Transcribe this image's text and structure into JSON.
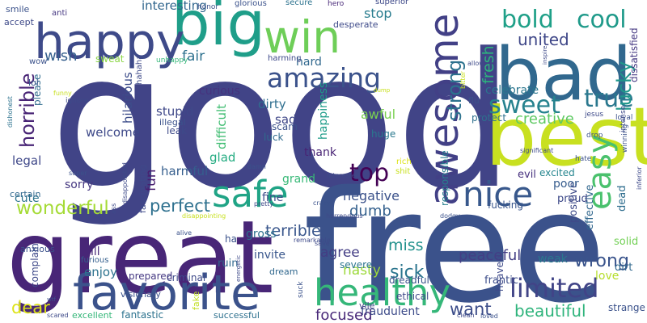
{
  "words": [
    {
      "text": "good",
      "color": "#414487"
    },
    {
      "text": "free",
      "color": "#3b528b"
    },
    {
      "text": "great",
      "color": "#482677"
    },
    {
      "text": "bad",
      "color": "#31688e"
    },
    {
      "text": "best",
      "color": "#c8e020"
    },
    {
      "text": "big",
      "color": "#1f9e89"
    },
    {
      "text": "happy",
      "color": "#3e4a89"
    },
    {
      "text": "win",
      "color": "#6ece58"
    },
    {
      "text": "awesome",
      "color": "#424086"
    },
    {
      "text": "favorite",
      "color": "#3b528b"
    },
    {
      "text": "healthy",
      "color": "#35b779"
    },
    {
      "text": "safe",
      "color": "#20a486"
    },
    {
      "text": "amazing",
      "color": "#3b528b"
    },
    {
      "text": "bold",
      "color": "#1fa088"
    },
    {
      "text": "cool",
      "color": "#1f9a8a"
    },
    {
      "text": "nice",
      "color": "#38588c"
    },
    {
      "text": "top",
      "color": "#440154"
    },
    {
      "text": "easy",
      "color": "#4ac16d"
    },
    {
      "text": "sweet",
      "color": "#26828e"
    },
    {
      "text": "true",
      "color": "#2a788e"
    },
    {
      "text": "limited",
      "color": "#414487"
    },
    {
      "text": "horrible",
      "color": "#482475"
    },
    {
      "text": "wonderful",
      "color": "#a5db36"
    },
    {
      "text": "strong",
      "color": "#2c728e"
    },
    {
      "text": "perfect",
      "color": "#2d708e"
    },
    {
      "text": "lucky",
      "color": "#1f978b"
    },
    {
      "text": "united",
      "color": "#3f4788"
    },
    {
      "text": "fresh",
      "color": "#2db27d"
    },
    {
      "text": "wrong",
      "color": "#3a548c"
    },
    {
      "text": "dear",
      "color": "#dde318"
    },
    {
      "text": "sick",
      "color": "#2b758e"
    },
    {
      "text": "want",
      "color": "#3d4e8a"
    },
    {
      "text": "beautiful",
      "color": "#2fb47c"
    },
    {
      "text": "interesting",
      "color": "#31668e"
    },
    {
      "text": "creative",
      "color": "#5ec962"
    },
    {
      "text": "terrible",
      "color": "#39568c"
    },
    {
      "text": "dumb",
      "color": "#34608d"
    },
    {
      "text": "miss",
      "color": "#21918c"
    },
    {
      "text": "peaceful",
      "color": "#433e85"
    },
    {
      "text": "focused",
      "color": "#482878"
    },
    {
      "text": "fraudulent",
      "color": "#3e4c8a"
    },
    {
      "text": "wish",
      "color": "#355f8d"
    },
    {
      "text": "fair",
      "color": "#2d718e"
    },
    {
      "text": "stop",
      "color": "#287c8e"
    },
    {
      "text": "negative",
      "color": "#3b528b"
    },
    {
      "text": "agree",
      "color": "#433d84"
    },
    {
      "text": "nasty",
      "color": "#9dd93b"
    },
    {
      "text": "enjoy",
      "color": "#2c738e"
    },
    {
      "text": "stupid",
      "color": "#3f4889"
    },
    {
      "text": "awful",
      "color": "#7ad151"
    },
    {
      "text": "welcome",
      "color": "#3e4989"
    },
    {
      "text": "hilarious",
      "color": "#3d4d8a"
    },
    {
      "text": "difficult",
      "color": "#40bd72"
    },
    {
      "text": "happiness",
      "color": "#1e9c89"
    },
    {
      "text": "responsible",
      "color": "#277f8e"
    },
    {
      "text": "curious",
      "color": "#46337e"
    },
    {
      "text": "celebrate",
      "color": "#2a768e"
    },
    {
      "text": "effective",
      "color": "#31678e"
    },
    {
      "text": "positive",
      "color": "#3e4a89"
    },
    {
      "text": "poor",
      "color": "#365c8d"
    },
    {
      "text": "dissatisfied",
      "color": "#453882"
    },
    {
      "text": "harmful",
      "color": "#355e8d"
    },
    {
      "text": "sorry",
      "color": "#453781"
    },
    {
      "text": "legal",
      "color": "#3f4889"
    },
    {
      "text": "cute",
      "color": "#2c738e"
    },
    {
      "text": "fun",
      "color": "#481f70"
    },
    {
      "text": "glad",
      "color": "#25ac82"
    },
    {
      "text": "thank",
      "color": "#482374"
    },
    {
      "text": "grand",
      "color": "#38b977"
    },
    {
      "text": "fine",
      "color": "#3e4c8a"
    },
    {
      "text": "gross",
      "color": "#2d708e"
    },
    {
      "text": "invite",
      "color": "#39568c"
    },
    {
      "text": "dirty",
      "color": "#2e6e8e"
    },
    {
      "text": "sad",
      "color": "#3f4788"
    },
    {
      "text": "weak",
      "color": "#2a778e"
    },
    {
      "text": "love",
      "color": "#b5de2b"
    },
    {
      "text": "accept",
      "color": "#3e4a89"
    },
    {
      "text": "smile",
      "color": "#3b528b"
    },
    {
      "text": "sweat",
      "color": "#8bd646"
    },
    {
      "text": "hard",
      "color": "#31688e"
    },
    {
      "text": "ill",
      "color": "#482878"
    },
    {
      "text": "huge",
      "color": "#2a788e"
    },
    {
      "text": "luck",
      "color": "#2f6b8e"
    },
    {
      "text": "scam",
      "color": "#3b528b"
    },
    {
      "text": "evil",
      "color": "#46307e"
    },
    {
      "text": "excited",
      "color": "#25858e"
    },
    {
      "text": "proud",
      "color": "#3e4a89"
    },
    {
      "text": "fucking",
      "color": "#39568c"
    },
    {
      "text": "protect",
      "color": "#2d708e"
    },
    {
      "text": "flu",
      "color": "#3b528b"
    },
    {
      "text": "dead",
      "color": "#2e6d8e"
    },
    {
      "text": "solid",
      "color": "#73d056"
    },
    {
      "text": "dirt",
      "color": "#31688e"
    },
    {
      "text": "strange",
      "color": "#3b528b"
    },
    {
      "text": "frantic",
      "color": "#3d4e8a"
    },
    {
      "text": "heaven",
      "color": "#3e4a89"
    },
    {
      "text": "ethical",
      "color": "#3e4a89"
    },
    {
      "text": "dreadful",
      "color": "#3b528b"
    },
    {
      "text": "vile",
      "color": "#424186"
    },
    {
      "text": "severe",
      "color": "#2b748e"
    },
    {
      "text": "criminal",
      "color": "#3e4989"
    },
    {
      "text": "dream",
      "color": "#31688e"
    },
    {
      "text": "ruin",
      "color": "#31688e"
    },
    {
      "text": "prepared",
      "color": "#453882"
    },
    {
      "text": "visionary",
      "color": "#3b528b"
    },
    {
      "text": "fantastic",
      "color": "#2c728e"
    },
    {
      "text": "successful",
      "color": "#2d708e"
    },
    {
      "text": "excellent",
      "color": "#35b779"
    },
    {
      "text": "complain",
      "color": "#3e4989"
    },
    {
      "text": "anxious",
      "color": "#3b528b"
    },
    {
      "text": "furious",
      "color": "#355f8d"
    },
    {
      "text": "certain",
      "color": "#31688e"
    },
    {
      "text": "ha",
      "color": "#3b528b"
    },
    {
      "text": "fake",
      "color": "#c2df23"
    },
    {
      "text": "leak",
      "color": "#3e4a89"
    },
    {
      "text": "illegal",
      "color": "#3b528b"
    },
    {
      "text": "fascinating",
      "color": "#3e4989"
    },
    {
      "text": "please",
      "color": "#2f6c8e"
    },
    {
      "text": "lol",
      "color": "#39568c"
    },
    {
      "text": "wow",
      "color": "#3b528b"
    },
    {
      "text": "anti",
      "color": "#453781"
    },
    {
      "text": "honor",
      "color": "#3b528b"
    },
    {
      "text": "glorious",
      "color": "#3b528b"
    },
    {
      "text": "secure",
      "color": "#2c728e"
    },
    {
      "text": "hero",
      "color": "#482878"
    },
    {
      "text": "superior",
      "color": "#3e4989"
    },
    {
      "text": "desperate",
      "color": "#3e4a89"
    },
    {
      "text": "harming",
      "color": "#3e4989"
    },
    {
      "text": "hahaha",
      "color": "#3e4a89"
    },
    {
      "text": "unhappy",
      "color": "#35b779"
    },
    {
      "text": "funny",
      "color": "#c8e020"
    },
    {
      "text": "ignore",
      "color": "#3e4a89"
    },
    {
      "text": "dishonest",
      "color": "#2c728e"
    },
    {
      "text": "jesus",
      "color": "#3e4a89"
    },
    {
      "text": "loyal",
      "color": "#3b528b"
    },
    {
      "text": "intense",
      "color": "#3e4a89"
    },
    {
      "text": "drop",
      "color": "#3b528b"
    },
    {
      "text": "significant",
      "color": "#3e4a89"
    },
    {
      "text": "hate",
      "color": "#3b528b"
    },
    {
      "text": "winning",
      "color": "#3b528b"
    },
    {
      "text": "inferior",
      "color": "#3e4989"
    },
    {
      "text": "rich",
      "color": "#dde318"
    },
    {
      "text": "shit",
      "color": "#c8e020"
    },
    {
      "text": "interested",
      "color": "#3e4a89"
    },
    {
      "text": "damn",
      "color": "#3b528b"
    },
    {
      "text": "disappointed",
      "color": "#3e4a89"
    },
    {
      "text": "disappointing",
      "color": "#c8e020"
    },
    {
      "text": "pretty",
      "color": "#3e4a89"
    },
    {
      "text": "crazy",
      "color": "#3b528b"
    },
    {
      "text": "horrendous",
      "color": "#3e4a89"
    },
    {
      "text": "alive",
      "color": "#3b528b"
    },
    {
      "text": "remarkable",
      "color": "#3e4a89"
    },
    {
      "text": "dodgy",
      "color": "#3b528b"
    },
    {
      "text": "save",
      "color": "#3e4989"
    },
    {
      "text": "energetic",
      "color": "#3e4a89"
    },
    {
      "text": "suck",
      "color": "#3b528b"
    },
    {
      "text": "clean",
      "color": "#3e4a89"
    },
    {
      "text": "loved",
      "color": "#3b528b"
    },
    {
      "text": "scared",
      "color": "#3e4a89"
    },
    {
      "text": "wtf",
      "color": "#3b528b"
    },
    {
      "text": "ass",
      "color": "#3e4a89"
    },
    {
      "text": "super",
      "color": "#3b528b"
    },
    {
      "text": "allow",
      "color": "#3e4a89"
    },
    {
      "text": "bitter",
      "color": "#c8e020"
    },
    {
      "text": "inspire",
      "color": "#3e4a89"
    },
    {
      "text": "dump",
      "color": "#c8e020"
    }
  ]
}
